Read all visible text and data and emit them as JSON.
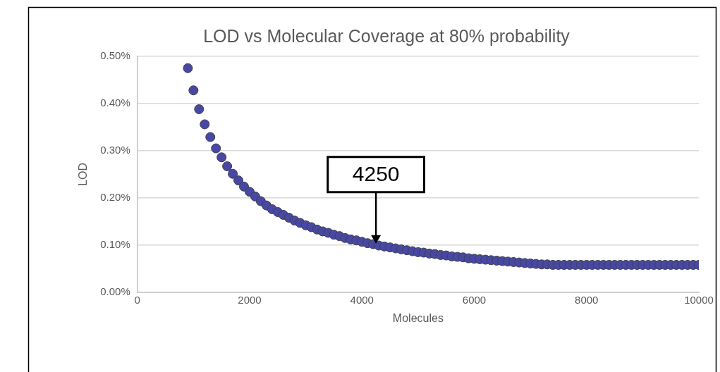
{
  "chart_data": {
    "type": "scatter",
    "title": "LOD vs Molecular Coverage at 80% probability",
    "xlabel": "Molecules",
    "ylabel": "LOD",
    "x": [
      900,
      1000,
      1100,
      1200,
      1300,
      1400,
      1500,
      1600,
      1700,
      1800,
      1900,
      2000,
      2100,
      2200,
      2300,
      2400,
      2500,
      2600,
      2700,
      2800,
      2900,
      3000,
      3100,
      3200,
      3300,
      3400,
      3500,
      3600,
      3700,
      3800,
      3900,
      4000,
      4100,
      4200,
      4300,
      4400,
      4500,
      4600,
      4700,
      4800,
      4900,
      5000,
      5100,
      5200,
      5300,
      5400,
      5500,
      5600,
      5700,
      5800,
      5900,
      6000,
      6100,
      6200,
      6300,
      6400,
      6500,
      6600,
      6700,
      6800,
      6900,
      7000,
      7100,
      7200,
      7300,
      7400,
      7500,
      7600,
      7700,
      7800,
      7900,
      8000,
      8100,
      8200,
      8300,
      8400,
      8500,
      8600,
      8700,
      8800,
      8900,
      9000,
      9100,
      9200,
      9300,
      9400,
      9500,
      9600,
      9700,
      9800,
      9900,
      10000
    ],
    "series": [
      {
        "color": "#4848a4",
        "values": [
          0.475,
          0.428,
          0.388,
          0.356,
          0.329,
          0.305,
          0.286,
          0.267,
          0.251,
          0.237,
          0.224,
          0.213,
          0.203,
          0.193,
          0.184,
          0.176,
          0.17,
          0.164,
          0.158,
          0.152,
          0.147,
          0.142,
          0.138,
          0.133,
          0.129,
          0.126,
          0.122,
          0.119,
          0.115,
          0.112,
          0.11,
          0.107,
          0.104,
          0.102,
          0.099,
          0.097,
          0.095,
          0.093,
          0.091,
          0.089,
          0.087,
          0.085,
          0.084,
          0.082,
          0.081,
          0.079,
          0.078,
          0.076,
          0.075,
          0.074,
          0.072,
          0.071,
          0.07,
          0.069,
          0.068,
          0.067,
          0.066,
          0.065,
          0.064,
          0.063,
          0.062,
          0.061,
          0.06,
          0.059,
          0.059,
          0.058,
          0.058,
          0.058,
          0.058,
          0.058,
          0.058,
          0.058,
          0.058,
          0.058,
          0.058,
          0.058,
          0.058,
          0.058,
          0.058,
          0.058,
          0.058,
          0.058,
          0.058,
          0.058,
          0.058,
          0.058,
          0.058,
          0.058,
          0.058,
          0.058,
          0.058,
          0.058
        ]
      }
    ],
    "xlim": [
      0,
      10000
    ],
    "xticks": [
      0,
      2000,
      4000,
      6000,
      8000,
      10000
    ],
    "ylim": [
      0,
      0.5
    ],
    "yticks": [
      {
        "value": 0,
        "label": "0.00%"
      },
      {
        "value": 0.1,
        "label": "0.10%"
      },
      {
        "value": 0.2,
        "label": "0.20%"
      },
      {
        "value": 0.3,
        "label": "0.30%"
      },
      {
        "value": 0.4,
        "label": "0.40%"
      },
      {
        "value": 0.5,
        "label": "0.50%"
      }
    ],
    "annotations": [
      {
        "text": "4250",
        "x": 4250,
        "y": 0.1
      }
    ],
    "grid": "y",
    "marker": "circle",
    "legend": false
  }
}
